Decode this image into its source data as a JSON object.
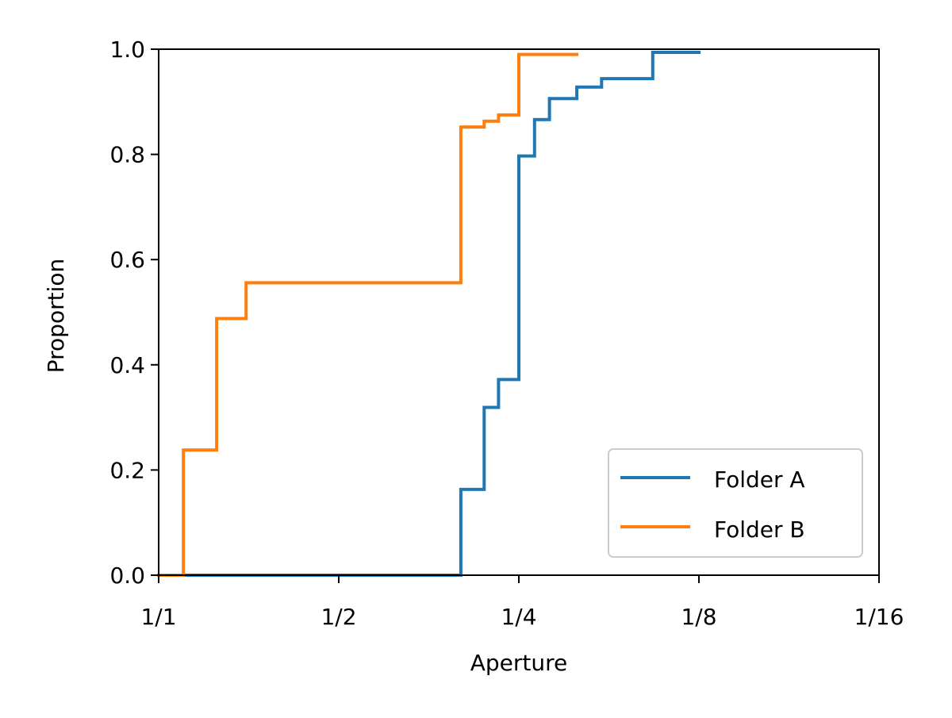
{
  "chart_data": {
    "type": "line",
    "subtype": "ecdf-step",
    "xlabel": "Aperture",
    "ylabel": "Proportion",
    "x_scale": "log2",
    "x_ticks": [
      {
        "value": 1,
        "label": "1/1"
      },
      {
        "value": 0.5,
        "label": "1/2"
      },
      {
        "value": 0.25,
        "label": "1/4"
      },
      {
        "value": 0.125,
        "label": "1/8"
      },
      {
        "value": 0.0625,
        "label": "1/16"
      }
    ],
    "xlim": [
      1,
      0.0625
    ],
    "y_ticks": [
      {
        "value": 0.0,
        "label": "0.0"
      },
      {
        "value": 0.2,
        "label": "0.2"
      },
      {
        "value": 0.4,
        "label": "0.4"
      },
      {
        "value": 0.6,
        "label": "0.6"
      },
      {
        "value": 0.8,
        "label": "0.8"
      },
      {
        "value": 1.0,
        "label": "1.0"
      }
    ],
    "ylim": [
      0,
      1
    ],
    "grid": false,
    "legend_position": "lower-right",
    "series": [
      {
        "name": "Folder A",
        "color": "#1f77b4",
        "points": [
          {
            "x": 1,
            "y": 0.0
          },
          {
            "x": 0.3125,
            "y": 0.163
          },
          {
            "x": 0.2857,
            "y": 0.319
          },
          {
            "x": 0.2703,
            "y": 0.372
          },
          {
            "x": 0.25,
            "y": 0.797
          },
          {
            "x": 0.2353,
            "y": 0.866
          },
          {
            "x": 0.2222,
            "y": 0.906
          },
          {
            "x": 0.2,
            "y": 0.928
          },
          {
            "x": 0.1818,
            "y": 0.944
          },
          {
            "x": 0.1493,
            "y": 0.994
          },
          {
            "x": 0.125,
            "y": 0.994
          }
        ]
      },
      {
        "name": "Folder B",
        "color": "#ff7f0e",
        "points": [
          {
            "x": 1,
            "y": 0.0
          },
          {
            "x": 0.9091,
            "y": 0.238
          },
          {
            "x": 0.8,
            "y": 0.488
          },
          {
            "x": 0.7143,
            "y": 0.556
          },
          {
            "x": 0.5,
            "y": 0.556
          },
          {
            "x": 0.3125,
            "y": 0.852
          },
          {
            "x": 0.2857,
            "y": 0.863
          },
          {
            "x": 0.2703,
            "y": 0.875
          },
          {
            "x": 0.25,
            "y": 0.99
          },
          {
            "x": 0.2,
            "y": 0.99
          }
        ]
      }
    ]
  }
}
